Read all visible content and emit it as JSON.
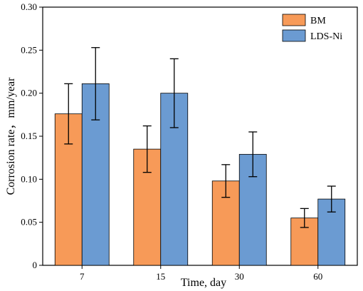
{
  "chart_data": {
    "type": "bar",
    "categories": [
      "7",
      "15",
      "30",
      "60"
    ],
    "series": [
      {
        "name": "BM",
        "color": "#f79a58",
        "values": [
          0.176,
          0.135,
          0.098,
          0.055
        ],
        "errors": [
          0.035,
          0.027,
          0.019,
          0.011
        ]
      },
      {
        "name": "LDS-Ni",
        "color": "#6b9bd2",
        "values": [
          0.211,
          0.2,
          0.129,
          0.077
        ],
        "errors": [
          0.042,
          0.04,
          0.026,
          0.015
        ]
      }
    ],
    "xlabel": "Time, day",
    "ylabel": "Corrosion rate，mm/year",
    "ylim": [
      0,
      0.3
    ],
    "yticks": [
      "0",
      "0.05",
      "0.10",
      "0.15",
      "0.20",
      "0.25",
      "0.30"
    ],
    "legend_position": "top-right",
    "grid": false
  }
}
